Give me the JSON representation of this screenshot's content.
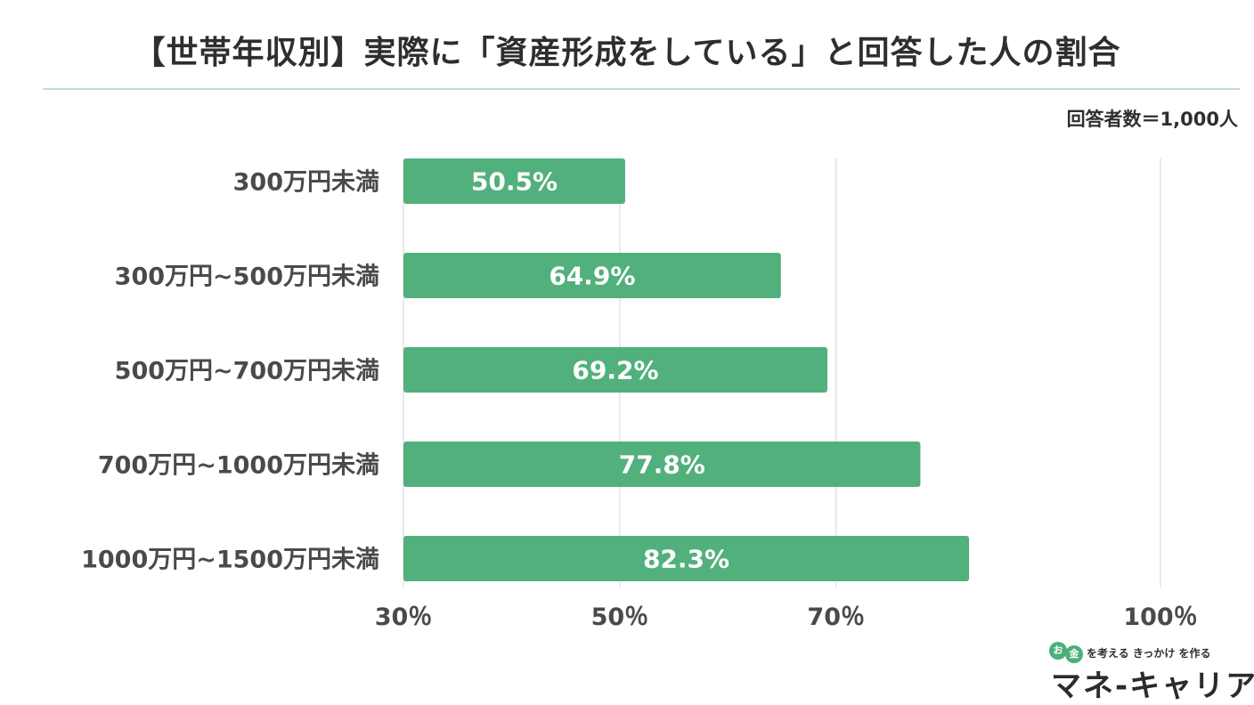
{
  "title": "【世帯年収別】実際に「資産形成をしている」と回答した人の割合",
  "respondents": "回答者数＝1,000人",
  "logo": {
    "tagline": "を考える きっかけ を作る",
    "badge_o": "お",
    "badge_kin": "金",
    "name": "マネ-キャリア"
  },
  "colors": {
    "bar": "#52b07c",
    "grid": "#e3e3e3",
    "rule": "#bfe0cf"
  },
  "chart_data": {
    "type": "bar",
    "orientation": "horizontal",
    "categories": [
      "300万円未満",
      "300万円~500万円未満",
      "500万円~700万円未満",
      "700万円~1000万円未満",
      "1000万円~1500万円未満"
    ],
    "values": [
      50.5,
      64.9,
      69.2,
      77.8,
      82.3
    ],
    "data_labels": [
      "50.5%",
      "64.9%",
      "69.2%",
      "77.8%",
      "82.3%"
    ],
    "xlim": [
      30,
      100
    ],
    "x_ticks": [
      30,
      50,
      70,
      100
    ],
    "x_tick_labels": [
      "30％",
      "50％",
      "70％",
      "100％"
    ],
    "grid": true,
    "legend": "none"
  }
}
